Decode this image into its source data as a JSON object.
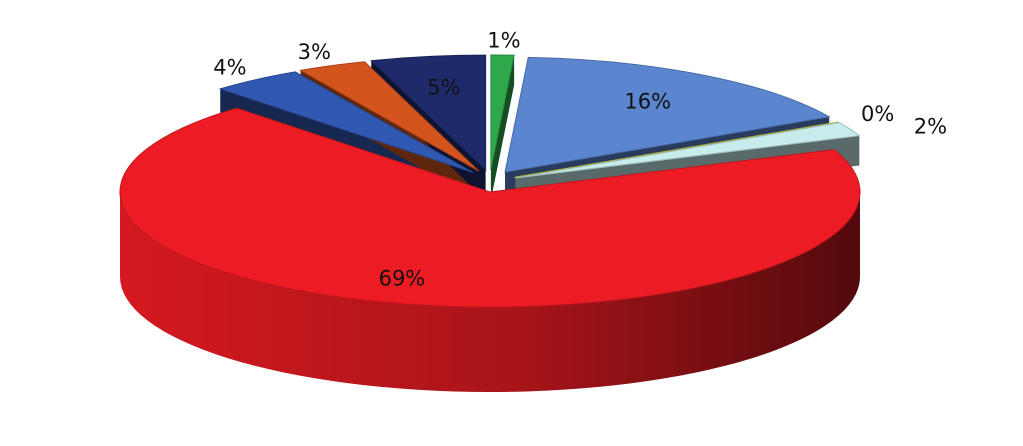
{
  "chart_data": {
    "type": "pie3d",
    "values": [
      1,
      16,
      0,
      2,
      69,
      4,
      3,
      5
    ],
    "value_labels": [
      "1%",
      "16%",
      "0%",
      "2%",
      "69%",
      "4%",
      "3%",
      "5%"
    ],
    "colors": [
      "#2ea84a",
      "#5b86cf",
      "#e8e53a",
      "#c8ecec",
      "#ed1c24",
      "#3058b0",
      "#d4541e",
      "#1f2a6b"
    ]
  }
}
